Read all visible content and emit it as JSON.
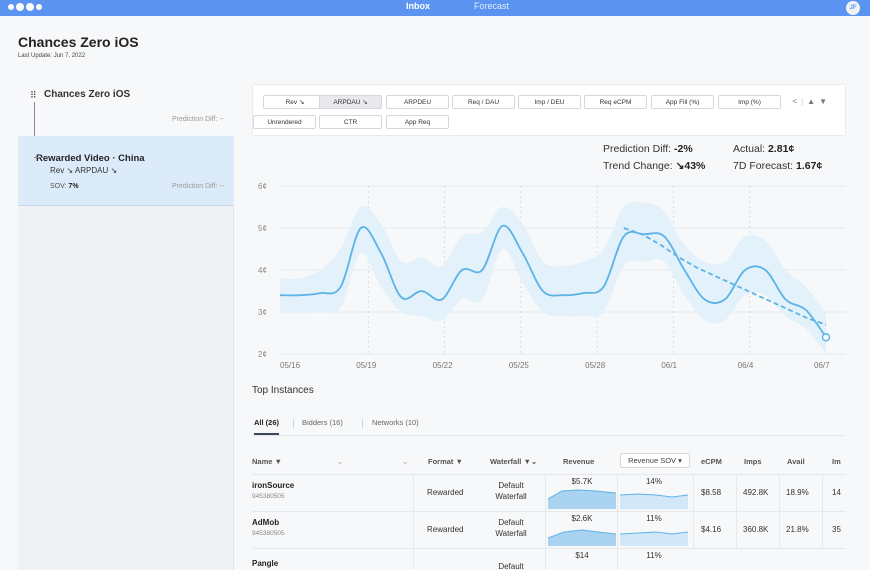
{
  "topbar": {
    "nav": [
      "Inbox",
      "Forecast"
    ],
    "avatar_initials": "JF",
    "brand_color": "#5b93f0"
  },
  "header": {
    "title": "Chances Zero iOS",
    "last_update": "Last Update: Jun 7, 2022"
  },
  "tree": {
    "root": {
      "label": "Chances Zero iOS",
      "prediction_diff": "Prediction Diff: --"
    },
    "child": {
      "label": "Rewarded Video · China",
      "metrics": "Rev ↘  ARPDAU ↘",
      "sov_label": "SOV:",
      "sov_value": "7%",
      "prediction_diff": "Prediction Diff: --"
    }
  },
  "metrics": {
    "buttons": [
      "Rev ↘",
      "ARPDAU ↘",
      "ARPDEU",
      "Req / DAU",
      "Imp / DEU",
      "Req eCPM",
      "App Fill (%)",
      "Imp (%)",
      "Unrendered",
      "CTR",
      "App Req"
    ],
    "active": "ARPDAU ↘"
  },
  "summary": {
    "prediction_diff_label": "Prediction Diff:",
    "prediction_diff_value": "-2%",
    "trend_change_label": "Trend Change:",
    "trend_change_value": "↘43%",
    "actual_label": "Actual:",
    "actual_value": "2.81¢",
    "forecast_label": "7D Forecast:",
    "forecast_value": "1.67¢"
  },
  "chart_data": {
    "type": "line",
    "x_labels": [
      "05/16",
      "05/19",
      "05/22",
      "05/25",
      "05/28",
      "06/1",
      "06/4",
      "06/7"
    ],
    "y_ticks": [
      "2¢",
      "3¢",
      "4¢",
      "5¢",
      "6¢"
    ],
    "ylim": [
      2,
      6
    ],
    "series": [
      {
        "values": [
          3.4,
          3.4,
          3.45,
          3.6,
          5.0,
          4.4,
          3.35,
          3.5,
          3.3,
          4.0,
          4.0,
          5.05,
          4.4,
          3.5,
          3.4,
          3.45,
          3.6,
          4.8,
          4.85,
          4.8,
          4.0,
          3.3,
          3.3,
          4.0,
          4.0,
          3.3,
          3.05,
          2.4
        ],
        "band_upper": [
          3.8,
          3.8,
          4.0,
          4.5,
          5.5,
          5.1,
          4.2,
          4.3,
          4.1,
          4.8,
          4.9,
          5.5,
          5.1,
          4.2,
          4.1,
          4.2,
          4.5,
          5.5,
          5.6,
          5.4,
          4.6,
          4.2,
          4.2,
          4.8,
          4.7,
          4.0,
          3.6,
          3.0
        ],
        "band_lower": [
          3.0,
          3.0,
          3.0,
          3.1,
          4.4,
          3.6,
          3.0,
          2.9,
          2.8,
          3.3,
          3.3,
          4.5,
          3.7,
          3.0,
          2.9,
          2.9,
          3.0,
          4.1,
          4.2,
          4.2,
          3.4,
          2.8,
          2.8,
          3.4,
          3.4,
          2.9,
          2.6,
          2.0
        ]
      },
      {
        "values_from_index": 17,
        "values": [
          5.0,
          4.85,
          4.6,
          4.3,
          4.05,
          3.85,
          3.65,
          3.45,
          3.25,
          3.05,
          2.85,
          2.7
        ]
      }
    ],
    "colors": {
      "line": "#5cb3e6",
      "band": "#e3f1fb",
      "trend": "#5cb3e6"
    }
  },
  "instances": {
    "title": "Top Instances",
    "tabs": [
      "All (26)",
      "Bidders (16)",
      "Networks (10)"
    ],
    "columns": [
      "Name",
      "Format",
      "Waterfall",
      "Revenue",
      "Revenue SOV ▾",
      "eCPM",
      "Imps",
      "Avail",
      "Im"
    ],
    "rows": [
      {
        "name": "ironSource",
        "id": "945380505",
        "format": "Rewarded",
        "waterfall": "Default Waterfall",
        "revenue": "$5.7K",
        "sov": "14%",
        "ecpm": "$8.58",
        "imps": "492.8K",
        "avail": "18.9%",
        "extra": "14"
      },
      {
        "name": "AdMob",
        "id": "945380505",
        "format": "Rewarded",
        "waterfall": "Default Waterfall",
        "revenue": "$2.6K",
        "sov": "11%",
        "ecpm": "$4.16",
        "imps": "360.8K",
        "avail": "21.8%",
        "extra": "35"
      },
      {
        "name": "Pangle",
        "id": "",
        "format": "",
        "waterfall": "Default",
        "revenue": "$14",
        "sov": "11%",
        "ecpm": "",
        "imps": "",
        "avail": "",
        "extra": ""
      }
    ]
  }
}
